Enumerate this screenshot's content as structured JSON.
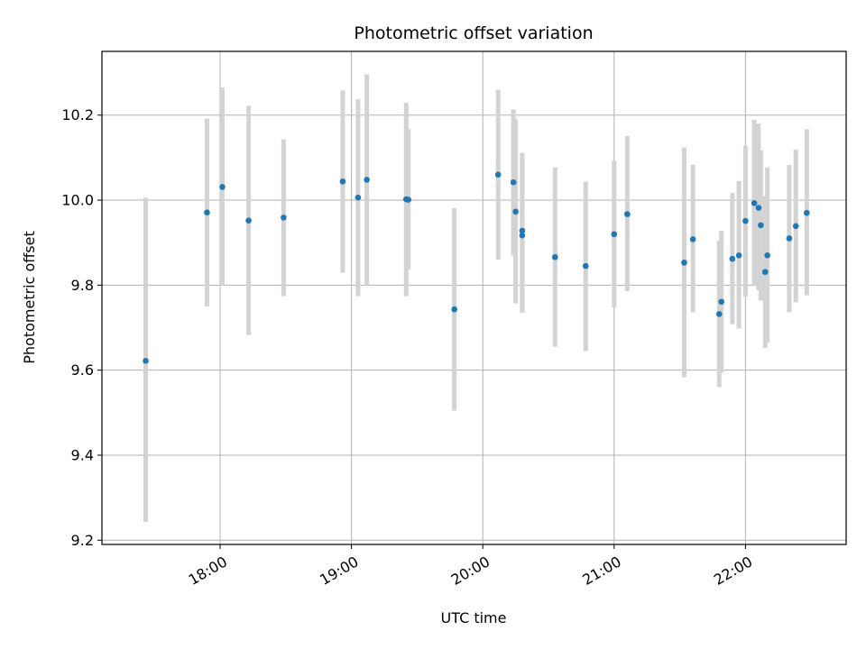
{
  "chart_data": {
    "type": "scatter",
    "title": "Photometric offset variation",
    "xlabel": "UTC time",
    "ylabel": "Photometric offset",
    "x_axis_kind": "time",
    "xlim": [
      "17:06",
      "22:46"
    ],
    "ylim": [
      9.19,
      10.35
    ],
    "x_ticks": [
      "18:00",
      "19:00",
      "20:00",
      "21:00",
      "22:00"
    ],
    "y_ticks": [
      9.2,
      9.4,
      9.6,
      9.8,
      10.0,
      10.2
    ],
    "grid": true,
    "point_color": "#1f77b4",
    "errorbar_color": "#d3d3d3",
    "series": [
      {
        "points": [
          {
            "x": "17:26",
            "y": 9.622,
            "lo": 9.243,
            "hi": 10.006
          },
          {
            "x": "17:54",
            "y": 9.971,
            "lo": 9.75,
            "hi": 10.192
          },
          {
            "x": "18:01",
            "y": 10.031,
            "lo": 9.799,
            "hi": 10.265
          },
          {
            "x": "18:13",
            "y": 9.952,
            "lo": 9.683,
            "hi": 10.222
          },
          {
            "x": "18:29",
            "y": 9.959,
            "lo": 9.774,
            "hi": 10.143
          },
          {
            "x": "18:56",
            "y": 10.044,
            "lo": 9.829,
            "hi": 10.258
          },
          {
            "x": "19:03",
            "y": 10.006,
            "lo": 9.774,
            "hi": 10.238
          },
          {
            "x": "19:07",
            "y": 10.048,
            "lo": 9.799,
            "hi": 10.296
          },
          {
            "x": "19:25",
            "y": 10.002,
            "lo": 9.774,
            "hi": 10.229
          },
          {
            "x": "19:26",
            "y": 10.001,
            "lo": 9.836,
            "hi": 10.167
          },
          {
            "x": "19:47",
            "y": 9.743,
            "lo": 9.505,
            "hi": 9.981
          },
          {
            "x": "20:07",
            "y": 10.06,
            "lo": 9.86,
            "hi": 10.26
          },
          {
            "x": "20:14",
            "y": 10.042,
            "lo": 9.87,
            "hi": 10.213
          },
          {
            "x": "20:15",
            "y": 9.973,
            "lo": 9.757,
            "hi": 10.19
          },
          {
            "x": "20:18",
            "y": 9.928,
            "lo": 9.745,
            "hi": 10.111
          },
          {
            "x": "20:18",
            "y": 9.917,
            "lo": 9.735,
            "hi": 10.1
          },
          {
            "x": "20:33",
            "y": 9.866,
            "lo": 9.655,
            "hi": 10.077
          },
          {
            "x": "20:47",
            "y": 9.845,
            "lo": 9.645,
            "hi": 10.044
          },
          {
            "x": "21:00",
            "y": 9.92,
            "lo": 9.748,
            "hi": 10.093
          },
          {
            "x": "21:06",
            "y": 9.967,
            "lo": 9.786,
            "hi": 10.151
          },
          {
            "x": "21:32",
            "y": 9.853,
            "lo": 9.583,
            "hi": 10.124
          },
          {
            "x": "21:36",
            "y": 9.908,
            "lo": 9.736,
            "hi": 10.083
          },
          {
            "x": "21:48",
            "y": 9.732,
            "lo": 9.56,
            "hi": 9.905
          },
          {
            "x": "21:49",
            "y": 9.761,
            "lo": 9.594,
            "hi": 9.928
          },
          {
            "x": "21:54",
            "y": 9.862,
            "lo": 9.708,
            "hi": 10.017
          },
          {
            "x": "21:57",
            "y": 9.87,
            "lo": 9.698,
            "hi": 10.045
          },
          {
            "x": "22:00",
            "y": 9.951,
            "lo": 9.773,
            "hi": 10.128
          },
          {
            "x": "22:04",
            "y": 9.993,
            "lo": 9.798,
            "hi": 10.189
          },
          {
            "x": "22:06",
            "y": 9.982,
            "lo": 9.788,
            "hi": 10.18
          },
          {
            "x": "22:07",
            "y": 9.941,
            "lo": 9.764,
            "hi": 10.117
          },
          {
            "x": "22:09",
            "y": 9.831,
            "lo": 9.652,
            "hi": 10.009
          },
          {
            "x": "22:10",
            "y": 9.87,
            "lo": 9.664,
            "hi": 10.077
          },
          {
            "x": "22:20",
            "y": 9.91,
            "lo": 9.736,
            "hi": 10.083
          },
          {
            "x": "22:23",
            "y": 9.939,
            "lo": 9.76,
            "hi": 10.119
          },
          {
            "x": "22:28",
            "y": 9.97,
            "lo": 9.776,
            "hi": 10.167
          }
        ]
      }
    ]
  }
}
